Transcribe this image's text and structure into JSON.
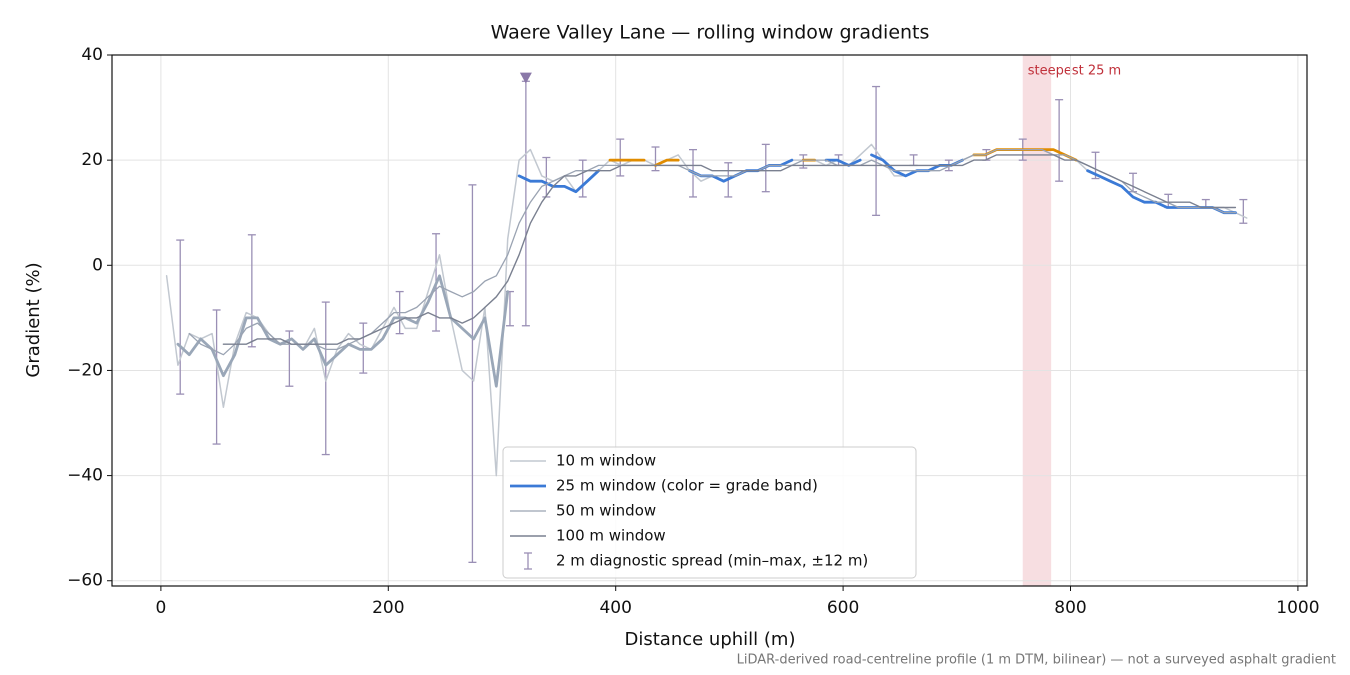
{
  "chart_data": {
    "type": "line",
    "title": "Waere Valley Lane — rolling window gradients",
    "x_label": "Distance uphill (m)",
    "y_label": "Gradient (%)",
    "footnote": "LiDAR-derived road-centreline profile (1 m DTM, bilinear) — not a surveyed asphalt gradient",
    "xlim": [
      -43,
      1008
    ],
    "ylim": [
      -61,
      40
    ],
    "xticks": [
      0,
      200,
      400,
      600,
      800,
      1000
    ],
    "yticks": [
      {
        "value": -60,
        "label": "−60"
      },
      {
        "value": -40,
        "label": "−40"
      },
      {
        "value": -20,
        "label": "−20"
      },
      0,
      20,
      40
    ],
    "grid": true,
    "legend": "lower center",
    "x": [
      5,
      15,
      25,
      35,
      45,
      55,
      65,
      75,
      85,
      95,
      105,
      115,
      125,
      135,
      145,
      155,
      165,
      175,
      185,
      195,
      205,
      215,
      225,
      235,
      245,
      255,
      265,
      275,
      285,
      295,
      305,
      315,
      325,
      335,
      345,
      355,
      365,
      375,
      385,
      395,
      405,
      415,
      425,
      435,
      445,
      455,
      465,
      475,
      485,
      495,
      505,
      515,
      525,
      535,
      545,
      555,
      565,
      575,
      585,
      595,
      605,
      615,
      625,
      635,
      645,
      655,
      665,
      675,
      685,
      695,
      705,
      715,
      725,
      735,
      745,
      755,
      765,
      775,
      785,
      795,
      805,
      815,
      825,
      835,
      845,
      855,
      865,
      875,
      885,
      895,
      905,
      915,
      925,
      935,
      945,
      955
    ],
    "series": [
      {
        "name": "10 m window",
        "color": "#c2c8d0",
        "width": 1.5,
        "values": [
          -2,
          -19,
          -13,
          -14,
          -13,
          -27,
          -15,
          -9,
          -10,
          -13,
          -15,
          -14,
          -16,
          -12,
          -22,
          -16,
          -13,
          -15,
          -16,
          -12,
          -8,
          -12,
          -12,
          -5,
          2,
          -10,
          -20,
          -22,
          -8,
          -40,
          5,
          20,
          22,
          17,
          16,
          17,
          14,
          16,
          18,
          20,
          19,
          20,
          20,
          19,
          20,
          21,
          18,
          16,
          17,
          16,
          17,
          18,
          18,
          19,
          19,
          20,
          20,
          20,
          19,
          20,
          19,
          21,
          23,
          20,
          17,
          17,
          18,
          18,
          19,
          19,
          20,
          21,
          21,
          22,
          22,
          22,
          22,
          22,
          21,
          21,
          20,
          18,
          17,
          16,
          15,
          13,
          12,
          12,
          12,
          11,
          11,
          11,
          11,
          11,
          10,
          9
        ]
      },
      {
        "name": "25 m window (color = grade band)",
        "color": "#3b7ad6",
        "width": 2.8,
        "values": [
          null,
          -15,
          -17,
          -14,
          -16,
          -21,
          -17,
          -10,
          -10,
          -14,
          -15,
          -14,
          -16,
          -14,
          -19,
          -17,
          -15,
          -16,
          -16,
          -14,
          -10,
          -10,
          -11,
          -7,
          -2,
          -10,
          -12,
          -14,
          -10,
          -23,
          -5,
          17,
          16,
          16,
          15,
          15,
          14,
          16,
          18,
          20,
          20,
          20,
          20,
          19,
          20,
          20,
          18,
          17,
          17,
          16,
          17,
          18,
          18,
          19,
          19,
          20,
          20,
          20,
          20,
          20,
          19,
          20,
          21,
          20,
          18,
          17,
          18,
          18,
          19,
          19,
          20,
          21,
          21,
          22,
          22,
          22,
          22,
          22,
          22,
          21,
          20,
          18,
          17,
          16,
          15,
          13,
          12,
          12,
          11,
          11,
          11,
          11,
          11,
          10,
          10,
          null
        ],
        "colors": [
          "#9aa7b8",
          "#9aa7b8",
          "#9aa7b8",
          "#9aa7b8",
          "#9aa7b8",
          "#9aa7b8",
          "#9aa7b8",
          "#9aa7b8",
          "#9aa7b8",
          "#9aa7b8",
          "#9aa7b8",
          "#9aa7b8",
          "#9aa7b8",
          "#9aa7b8",
          "#9aa7b8",
          "#9aa7b8",
          "#9aa7b8",
          "#9aa7b8",
          "#9aa7b8",
          "#9aa7b8",
          "#9aa7b8",
          "#9aa7b8",
          "#9aa7b8",
          "#9aa7b8",
          "#9aa7b8",
          "#9aa7b8",
          "#9aa7b8",
          "#9aa7b8",
          "#9aa7b8",
          "#9aa7b8",
          "#9aa7b8",
          "#3b7ad6",
          "#3b7ad6",
          "#3b7ad6",
          "#3b7ad6",
          "#3b7ad6",
          "#3b7ad6",
          "#3b7ad6",
          "#3b7ad6",
          "#e08c00",
          "#e08c00",
          "#e08c00",
          "#e08c00",
          "#3b7ad6",
          "#e08c00",
          "#e08c00",
          "#3b7ad6",
          "#3b7ad6",
          "#3b7ad6",
          "#3b7ad6",
          "#3b7ad6",
          "#3b7ad6",
          "#3b7ad6",
          "#3b7ad6",
          "#3b7ad6",
          "#3b7ad6",
          "#e08c00",
          "#e08c00",
          "#3b7ad6",
          "#3b7ad6",
          "#3b7ad6",
          "#3b7ad6",
          "#e08c00",
          "#3b7ad6",
          "#3b7ad6",
          "#3b7ad6",
          "#3b7ad6",
          "#3b7ad6",
          "#3b7ad6",
          "#3b7ad6",
          "#3b7ad6",
          "#e08c00",
          "#e08c00",
          "#e08c00",
          "#e08c00",
          "#e08c00",
          "#e08c00",
          "#e08c00",
          "#e08c00",
          "#e08c00",
          "#e08c00",
          "#3b7ad6",
          "#3b7ad6",
          "#3b7ad6",
          "#3b7ad6",
          "#3b7ad6",
          "#3b7ad6",
          "#3b7ad6",
          "#3b7ad6",
          "#3b7ad6",
          "#3b7ad6",
          "#3b7ad6",
          "#3b7ad6",
          "#3b7ad6",
          "#3b7ad6",
          "#3b7ad6"
        ]
      },
      {
        "name": "50 m window",
        "color": "#9aa3b2",
        "width": 1.3,
        "values": [
          null,
          null,
          -13,
          -15,
          -16,
          -17,
          -15,
          -12,
          -11,
          -13,
          -15,
          -15,
          -15,
          -15,
          -16,
          -16,
          -15,
          -14,
          -13,
          -11,
          -9,
          -9,
          -8,
          -6,
          -4,
          -5,
          -6,
          -5,
          -3,
          -2,
          2,
          8,
          12,
          15,
          16,
          17,
          18,
          18,
          19,
          19,
          19,
          19,
          19,
          19,
          19,
          19,
          18,
          17,
          17,
          17,
          17,
          18,
          18,
          19,
          19,
          19,
          20,
          20,
          20,
          19,
          19,
          19,
          20,
          19,
          18,
          18,
          18,
          18,
          18,
          19,
          20,
          21,
          21,
          22,
          22,
          22,
          22,
          22,
          21,
          21,
          20,
          19,
          18,
          17,
          16,
          14,
          13,
          12,
          12,
          11,
          11,
          11,
          11,
          10,
          10,
          null
        ]
      },
      {
        "name": "100 m window",
        "color": "#7a8090",
        "width": 1.4,
        "values": [
          null,
          null,
          null,
          null,
          null,
          -15,
          -15,
          -15,
          -14,
          -14,
          -14,
          -15,
          -15,
          -15,
          -15,
          -15,
          -14,
          -14,
          -13,
          -12,
          -11,
          -10,
          -10,
          -9,
          -10,
          -10,
          -11,
          -10,
          -8,
          -6,
          -3,
          2,
          8,
          12,
          15,
          17,
          17,
          18,
          18,
          18,
          19,
          19,
          19,
          19,
          19,
          19,
          19,
          19,
          18,
          18,
          18,
          18,
          18,
          18,
          18,
          19,
          19,
          19,
          19,
          19,
          19,
          19,
          19,
          19,
          19,
          19,
          19,
          19,
          19,
          19,
          19,
          20,
          20,
          21,
          21,
          21,
          21,
          21,
          21,
          20,
          20,
          19,
          18,
          17,
          16,
          15,
          14,
          13,
          12,
          12,
          12,
          11,
          11,
          11,
          11,
          null
        ]
      }
    ],
    "errorbars": {
      "name": "2 m diagnostic spread (min–max, ±12 m)",
      "color": "#9a8fb5",
      "x": [
        17,
        49,
        80,
        113,
        145,
        178,
        210,
        242,
        274,
        307,
        321,
        339,
        371,
        404,
        435,
        468,
        499,
        532,
        565,
        596,
        629,
        662,
        693,
        726,
        758,
        790,
        822,
        855,
        886,
        919,
        952
      ],
      "low": [
        -24.5,
        -34,
        -15.5,
        -23,
        -36,
        -20.5,
        -13,
        -12.5,
        -56.5,
        -11.5,
        -11.5,
        13,
        13,
        17,
        18,
        13,
        13,
        14,
        18.5,
        19,
        9.5,
        19,
        18,
        20,
        20,
        16,
        16.5,
        14,
        11,
        11,
        8
      ],
      "high": [
        4.8,
        -8.5,
        5.8,
        -12.5,
        -7,
        -11,
        -5,
        6,
        15.3,
        -5,
        35,
        20.5,
        20,
        24,
        22.5,
        22,
        19.5,
        23,
        21,
        21,
        34,
        21,
        20,
        22,
        24,
        31.5,
        21.5,
        17.5,
        13.5,
        12.5,
        12.5
      ]
    },
    "marker": {
      "x": 321,
      "y": 35.5,
      "color": "#8a78a8"
    },
    "span": {
      "x": [
        758,
        783
      ],
      "label": "steepest 25 m",
      "color": "#e8a0a8",
      "label_color": "#c0303a"
    }
  }
}
